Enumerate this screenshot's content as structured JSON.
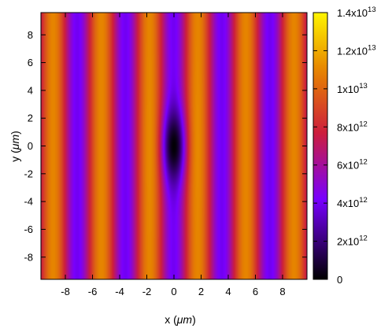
{
  "chart_data": {
    "type": "heatmap",
    "title": "",
    "xlabel_prefix": "x (",
    "xlabel_unit": "μm",
    "xlabel_suffix": ")",
    "ylabel_prefix": "y (",
    "ylabel_unit": "μm",
    "ylabel_suffix": ")",
    "xlim": [
      -9.8,
      9.8
    ],
    "ylim": [
      -9.6,
      9.6
    ],
    "x_ticks": [
      -8,
      -6,
      -4,
      -2,
      0,
      2,
      4,
      6,
      8
    ],
    "y_ticks": [
      -8,
      -6,
      -4,
      -2,
      0,
      2,
      4,
      6,
      8
    ],
    "x_tick_labels": [
      "-8",
      "-6",
      "-4",
      "-2",
      "0",
      "2",
      "4",
      "6",
      "8"
    ],
    "y_tick_labels": [
      "-8",
      "-6",
      "-4",
      "-2",
      "0",
      "2",
      "4",
      "6",
      "8"
    ],
    "colorbar": {
      "range": [
        0,
        14000000000000.0
      ],
      "ticks": [
        {
          "value": 0,
          "mantissa": "0",
          "exponent": ""
        },
        {
          "value": 2000000000000.0,
          "mantissa": "2x10",
          "exponent": "12"
        },
        {
          "value": 4000000000000.0,
          "mantissa": "4x10",
          "exponent": "12"
        },
        {
          "value": 6000000000000.0,
          "mantissa": "6x10",
          "exponent": "12"
        },
        {
          "value": 8000000000000.0,
          "mantissa": "8x10",
          "exponent": "12"
        },
        {
          "value": 10000000000000.0,
          "mantissa": "1x10",
          "exponent": "13"
        },
        {
          "value": 12000000000000.0,
          "mantissa": "1.2x10",
          "exponent": "13"
        },
        {
          "value": 14000000000000.0,
          "mantissa": "1.4x10",
          "exponent": "13"
        }
      ],
      "colormap": "black-purple-red-orange-yellow"
    },
    "field": {
      "fringe_period": 3.55,
      "fringe_peak_x": [
        -8.9,
        -5.35,
        -1.8,
        1.75,
        5.3,
        8.85
      ],
      "fringe_trough_x": [
        -7.1,
        -3.55,
        0,
        3.55,
        7.1
      ],
      "background_min": 4000000000000.0,
      "fringe_max": 11000000000000.0,
      "focus_center": [
        0,
        0
      ],
      "focus_min": 0,
      "focus_half_width_x": 0.75,
      "focus_half_height_y": 2.6
    }
  }
}
